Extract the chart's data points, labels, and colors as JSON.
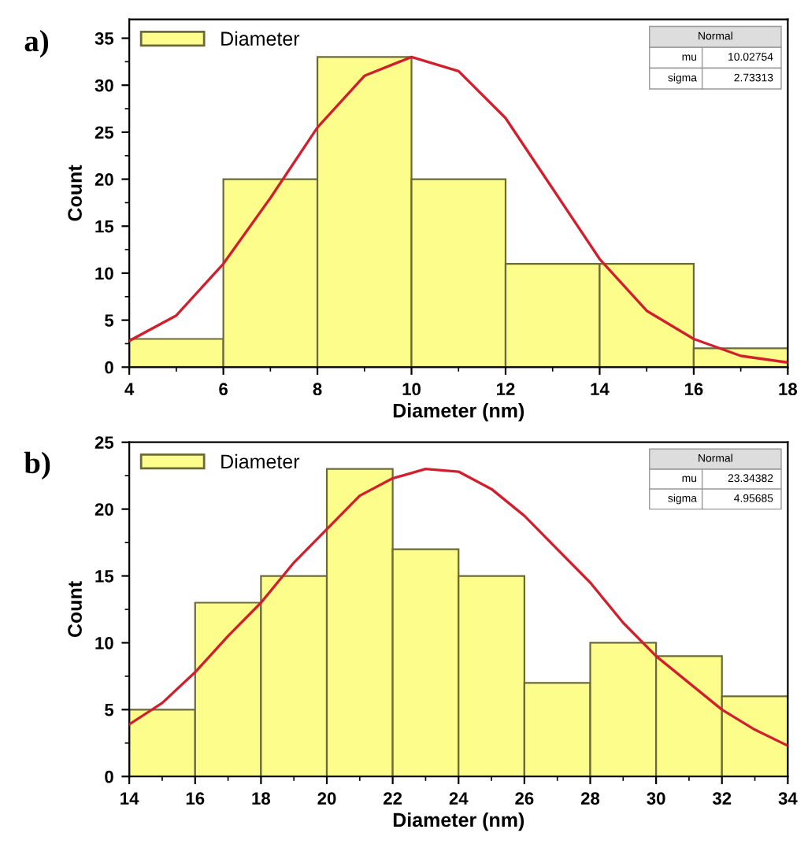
{
  "chart_data": [
    {
      "type": "histogram",
      "title": "a)",
      "xlabel": "Diameter (nm)",
      "ylabel": "Count",
      "bins": [
        4,
        6,
        8,
        10,
        12,
        14,
        16,
        18
      ],
      "xlim": [
        4,
        18
      ],
      "xticks": [
        4,
        6,
        8,
        10,
        12,
        14,
        16,
        18
      ],
      "ylim": [
        0,
        37
      ],
      "yticks": [
        0,
        5,
        10,
        15,
        20,
        25,
        30,
        35
      ],
      "grid": false,
      "legend": "top left",
      "annotations": [
        "Normal",
        "mu",
        "10.02754",
        "sigma",
        "2.73313"
      ],
      "series": [
        {
          "name": "Diameter",
          "type": "histogram",
          "color": "#fdfd8c",
          "values": [
            3,
            20,
            33,
            20,
            11,
            11,
            2
          ]
        },
        {
          "type": "line",
          "color": "#d0202e",
          "x": [
            4,
            5,
            6,
            7,
            8,
            9,
            10,
            11,
            12,
            13,
            14,
            15,
            16,
            17,
            18
          ],
          "values": [
            2.8,
            5.5,
            11,
            18,
            25.5,
            31,
            33,
            31.5,
            26.5,
            19,
            11.5,
            6,
            3,
            1.2,
            0.5
          ]
        }
      ]
    },
    {
      "type": "histogram",
      "title": "b)",
      "xlabel": "Diameter (nm)",
      "ylabel": "Count",
      "bins": [
        14,
        16,
        18,
        20,
        22,
        24,
        26,
        28,
        30,
        32,
        34
      ],
      "xlim": [
        14,
        34
      ],
      "xticks": [
        14,
        16,
        18,
        20,
        22,
        24,
        26,
        28,
        30,
        32,
        34
      ],
      "ylim": [
        0,
        25
      ],
      "yticks": [
        0,
        5,
        10,
        15,
        20,
        25
      ],
      "grid": false,
      "legend": "top left",
      "annotations": [
        "Normal",
        "mu",
        "23.34382",
        "sigma",
        "4.95685"
      ],
      "series": [
        {
          "name": "Diameter",
          "type": "histogram",
          "color": "#fdfd8c",
          "values": [
            5,
            13,
            15,
            23,
            17,
            15,
            7,
            10,
            9,
            6
          ]
        },
        {
          "type": "line",
          "color": "#d0202e",
          "x": [
            14,
            15,
            16,
            17,
            18,
            19,
            20,
            21,
            22,
            23,
            24,
            25,
            26,
            27,
            28,
            29,
            30,
            31,
            32,
            33,
            34
          ],
          "values": [
            3.9,
            5.5,
            7.8,
            10.5,
            13,
            16,
            18.5,
            21,
            22.3,
            23,
            22.8,
            21.5,
            19.5,
            17,
            14.5,
            11.5,
            9,
            7,
            5,
            3.5,
            2.3
          ]
        }
      ]
    }
  ]
}
